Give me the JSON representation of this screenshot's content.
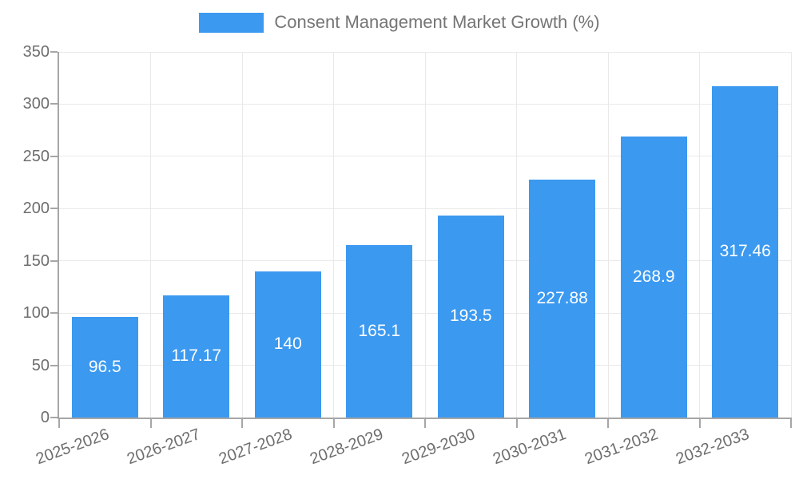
{
  "chart_data": {
    "type": "bar",
    "title": "",
    "legend": "Consent Management Market Growth (%)",
    "legend_position": "top-center",
    "categories": [
      "2025-2026",
      "2026-2027",
      "2027-2028",
      "2028-2029",
      "2029-2030",
      "2030-2031",
      "2031-2032",
      "2032-2033"
    ],
    "values": [
      96.5,
      117.17,
      140,
      165.1,
      193.5,
      227.88,
      268.9,
      317.46
    ],
    "value_labels": [
      "96.5",
      "117.17",
      "140",
      "165.1",
      "193.5",
      "227.88",
      "268.9",
      "317.46"
    ],
    "xlabel": "",
    "ylabel": "",
    "ylim": [
      0,
      350
    ],
    "ytick_step": 50,
    "ytick_labels": [
      "0",
      "50",
      "100",
      "150",
      "200",
      "250",
      "300",
      "350"
    ],
    "grid": true,
    "colors": {
      "bar": "#3B99F0",
      "grid": "#E9E9E9",
      "axis": "#A6A6A6",
      "tick_text": "#6E6E6E",
      "legend_text": "#757575",
      "value_text": "#FFFFFF",
      "background": "#FFFFFF"
    }
  }
}
